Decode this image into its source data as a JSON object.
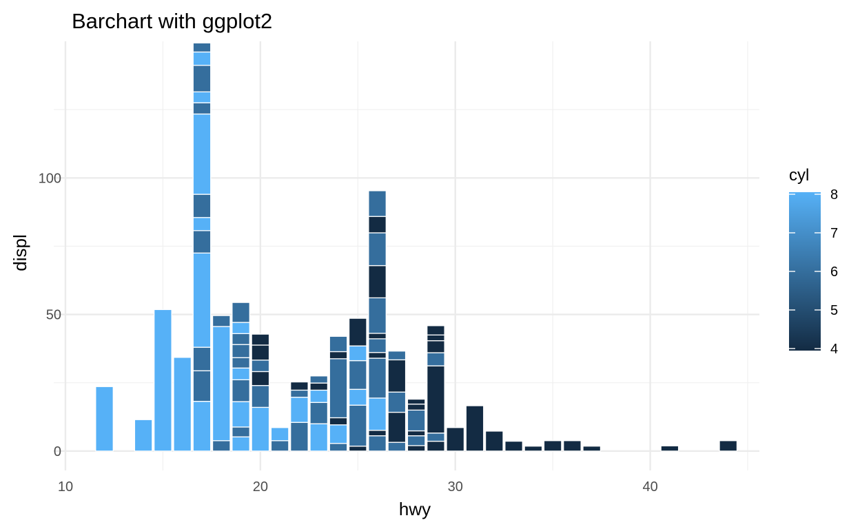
{
  "chart_data": {
    "type": "bar",
    "stacked": true,
    "title": "Barchart with ggplot2",
    "xlabel": "hwy",
    "ylabel": "displ",
    "xlim": [
      9.4,
      45.6
    ],
    "ylim": [
      -7.1,
      150
    ],
    "x_ticks": [
      10,
      20,
      30,
      40
    ],
    "y_ticks": [
      0,
      50,
      100
    ],
    "grid": true,
    "legend": {
      "title": "cyl",
      "position": "right",
      "breaks": [
        8,
        7,
        6,
        5,
        4
      ],
      "range": [
        4,
        8
      ],
      "low_color": "#132B43",
      "high_color": "#56B1F7"
    },
    "bars": [
      {
        "x": 12,
        "segments": [
          {
            "cyl": 8,
            "value": 23.6
          }
        ]
      },
      {
        "x": 14,
        "segments": [
          {
            "cyl": 8,
            "value": 11.5
          }
        ]
      },
      {
        "x": 15,
        "segments": [
          {
            "cyl": 8,
            "value": 51.8
          }
        ]
      },
      {
        "x": 16,
        "segments": [
          {
            "cyl": 8,
            "value": 34.3
          }
        ]
      },
      {
        "x": 17,
        "segments": [
          {
            "cyl": 8,
            "value": 18.2
          },
          {
            "cyl": 6,
            "value": 11.2
          },
          {
            "cyl": 6,
            "value": 8.6
          },
          {
            "cyl": 8,
            "value": 34.5
          },
          {
            "cyl": 6,
            "value": 8.2
          },
          {
            "cyl": 8,
            "value": 4.8
          },
          {
            "cyl": 6,
            "value": 8.5
          },
          {
            "cyl": 8,
            "value": 29.4
          },
          {
            "cyl": 6,
            "value": 4.1
          },
          {
            "cyl": 8,
            "value": 4.0
          },
          {
            "cyl": 6,
            "value": 9.7
          },
          {
            "cyl": 8,
            "value": 4.9
          },
          {
            "cyl": 6,
            "value": 3.3
          }
        ]
      },
      {
        "x": 18,
        "segments": [
          {
            "cyl": 6,
            "value": 3.8
          },
          {
            "cyl": 8,
            "value": 41.8
          },
          {
            "cyl": 6,
            "value": 4.0
          }
        ]
      },
      {
        "x": 19,
        "segments": [
          {
            "cyl": 8,
            "value": 5.2
          },
          {
            "cyl": 6,
            "value": 3.6
          },
          {
            "cyl": 8,
            "value": 9.3
          },
          {
            "cyl": 6,
            "value": 8.0
          },
          {
            "cyl": 8,
            "value": 4.3
          },
          {
            "cyl": 6,
            "value": 3.8
          },
          {
            "cyl": 6,
            "value": 4.8
          },
          {
            "cyl": 6,
            "value": 4.0
          },
          {
            "cyl": 8,
            "value": 4.1
          },
          {
            "cyl": 6,
            "value": 7.3
          }
        ]
      },
      {
        "x": 20,
        "segments": [
          {
            "cyl": 8,
            "value": 16.0
          },
          {
            "cyl": 6,
            "value": 8.0
          },
          {
            "cyl": 4,
            "value": 5.1
          },
          {
            "cyl": 6,
            "value": 4.2
          },
          {
            "cyl": 4,
            "value": 5.5
          },
          {
            "cyl": 4,
            "value": 4.0
          }
        ]
      },
      {
        "x": 21,
        "segments": [
          {
            "cyl": 6,
            "value": 3.8
          },
          {
            "cyl": 8,
            "value": 4.8
          }
        ]
      },
      {
        "x": 22,
        "segments": [
          {
            "cyl": 6,
            "value": 10.5
          },
          {
            "cyl": 8,
            "value": 9.2
          },
          {
            "cyl": 6,
            "value": 2.6
          },
          {
            "cyl": 4,
            "value": 3.0
          }
        ]
      },
      {
        "x": 23,
        "segments": [
          {
            "cyl": 8,
            "value": 10.0
          },
          {
            "cyl": 6,
            "value": 7.8
          },
          {
            "cyl": 8,
            "value": 4.5
          },
          {
            "cyl": 4,
            "value": 2.6
          },
          {
            "cyl": 6,
            "value": 2.6
          }
        ]
      },
      {
        "x": 24,
        "segments": [
          {
            "cyl": 6,
            "value": 2.8
          },
          {
            "cyl": 8,
            "value": 6.8
          },
          {
            "cyl": 4,
            "value": 2.6
          },
          {
            "cyl": 6,
            "value": 21.6
          },
          {
            "cyl": 4,
            "value": 2.6
          },
          {
            "cyl": 6,
            "value": 5.6
          }
        ]
      },
      {
        "x": 25,
        "segments": [
          {
            "cyl": 4,
            "value": 1.8
          },
          {
            "cyl": 6,
            "value": 15.0
          },
          {
            "cyl": 8,
            "value": 5.8
          },
          {
            "cyl": 6,
            "value": 10.5
          },
          {
            "cyl": 8,
            "value": 5.4
          },
          {
            "cyl": 4,
            "value": 10.1
          }
        ]
      },
      {
        "x": 26,
        "segments": [
          {
            "cyl": 6,
            "value": 5.6
          },
          {
            "cyl": 4,
            "value": 2.0
          },
          {
            "cyl": 8,
            "value": 11.8
          },
          {
            "cyl": 6,
            "value": 14.6
          },
          {
            "cyl": 4,
            "value": 2.1
          },
          {
            "cyl": 6,
            "value": 5.0
          },
          {
            "cyl": 4,
            "value": 2.0
          },
          {
            "cyl": 6,
            "value": 13.0
          },
          {
            "cyl": 4,
            "value": 11.8
          },
          {
            "cyl": 6,
            "value": 12.0
          },
          {
            "cyl": 4,
            "value": 6.0
          },
          {
            "cyl": 6,
            "value": 9.4
          }
        ]
      },
      {
        "x": 27,
        "segments": [
          {
            "cyl": 6,
            "value": 3.2
          },
          {
            "cyl": 4,
            "value": 11.0
          },
          {
            "cyl": 6,
            "value": 7.4
          },
          {
            "cyl": 4,
            "value": 11.8
          },
          {
            "cyl": 6,
            "value": 3.2
          }
        ]
      },
      {
        "x": 28,
        "segments": [
          {
            "cyl": 4,
            "value": 2.0
          },
          {
            "cyl": 6,
            "value": 3.6
          },
          {
            "cyl": 4,
            "value": 1.8
          },
          {
            "cyl": 6,
            "value": 7.6
          },
          {
            "cyl": 4,
            "value": 2.2
          },
          {
            "cyl": 4,
            "value": 1.8
          }
        ]
      },
      {
        "x": 29,
        "segments": [
          {
            "cyl": 4,
            "value": 3.6
          },
          {
            "cyl": 6,
            "value": 3.0
          },
          {
            "cyl": 4,
            "value": 24.6
          },
          {
            "cyl": 6,
            "value": 4.8
          },
          {
            "cyl": 4,
            "value": 4.4
          },
          {
            "cyl": 4,
            "value": 2.1
          },
          {
            "cyl": 4,
            "value": 3.4
          }
        ]
      },
      {
        "x": 30,
        "segments": [
          {
            "cyl": 4,
            "value": 8.6
          }
        ]
      },
      {
        "x": 31,
        "segments": [
          {
            "cyl": 4,
            "value": 16.6
          }
        ]
      },
      {
        "x": 32,
        "segments": [
          {
            "cyl": 4,
            "value": 7.3
          }
        ]
      },
      {
        "x": 33,
        "segments": [
          {
            "cyl": 4,
            "value": 3.6
          }
        ]
      },
      {
        "x": 34,
        "segments": [
          {
            "cyl": 4,
            "value": 1.8
          }
        ]
      },
      {
        "x": 35,
        "segments": [
          {
            "cyl": 4,
            "value": 3.8
          }
        ]
      },
      {
        "x": 36,
        "segments": [
          {
            "cyl": 4,
            "value": 3.8
          }
        ]
      },
      {
        "x": 37,
        "segments": [
          {
            "cyl": 4,
            "value": 1.8
          }
        ]
      },
      {
        "x": 41,
        "segments": [
          {
            "cyl": 4,
            "value": 1.9
          }
        ]
      },
      {
        "x": 44,
        "segments": [
          {
            "cyl": 4,
            "value": 3.8
          }
        ]
      }
    ]
  }
}
